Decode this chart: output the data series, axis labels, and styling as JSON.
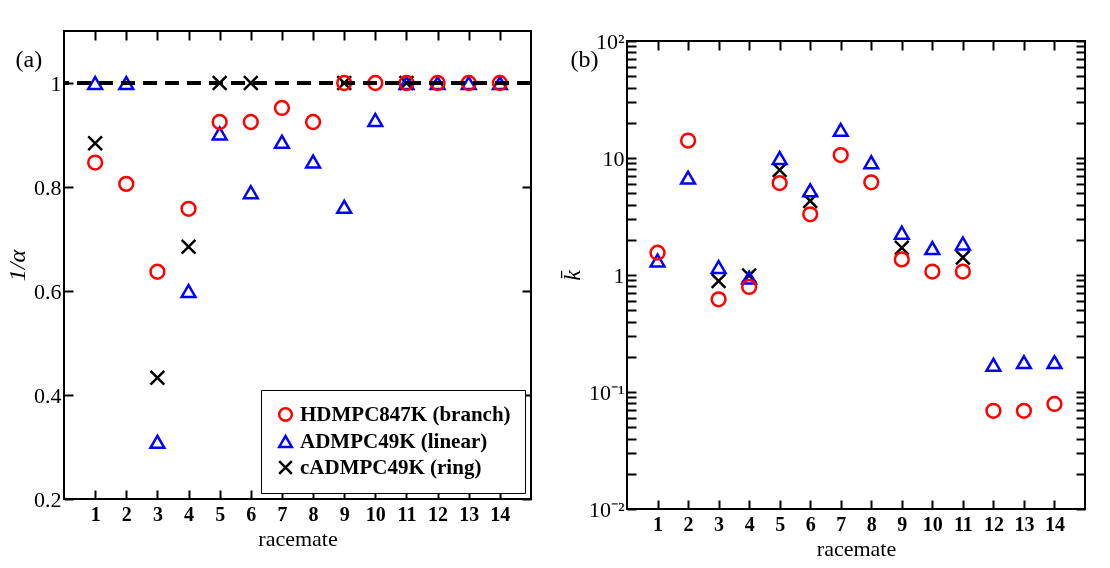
{
  "chart_data": [
    {
      "type": "scatter",
      "title": "(a)",
      "xlabel": "racemate",
      "ylabel": "1/α",
      "x": [
        1,
        2,
        3,
        4,
        5,
        6,
        7,
        8,
        9,
        10,
        11,
        12,
        13,
        14
      ],
      "xlim": [
        0,
        15
      ],
      "xticks": [
        1,
        2,
        3,
        4,
        5,
        6,
        7,
        8,
        9,
        10,
        11,
        12,
        13,
        14
      ],
      "ylim": [
        0.2,
        1.1
      ],
      "yticks": [
        0.2,
        0.4,
        0.6,
        0.8,
        1
      ],
      "grid": false,
      "legend": "bottom right",
      "ref_lines": [
        {
          "axis": "y",
          "value": 1,
          "color": "#000000",
          "line_style": "dashed"
        }
      ],
      "series": [
        {
          "name": "HDMPC847K (branch)",
          "color": "#ff0000",
          "marker": "circle",
          "values": [
            0.847,
            0.806,
            0.637,
            0.758,
            0.925,
            0.925,
            0.952,
            0.925,
            1,
            1,
            1,
            1,
            1,
            1
          ]
        },
        {
          "name": "ADMPC49K (linear)",
          "color": "#0000ff",
          "marker": "triangle",
          "values": [
            1,
            1,
            0.31,
            0.6,
            0.903,
            0.79,
            0.887,
            0.849,
            0.762,
            0.929,
            1,
            1,
            1,
            1
          ]
        },
        {
          "name": "cADMPC49K (ring)",
          "color": "#000000",
          "marker": "cross",
          "values": [
            0.884,
            null,
            0.433,
            0.685,
            1,
            1,
            null,
            null,
            1,
            null,
            1,
            null,
            null,
            null
          ]
        }
      ]
    },
    {
      "type": "scatter",
      "title": "(b)",
      "xlabel": "racemate",
      "ylabel": "k̄",
      "x": [
        1,
        2,
        3,
        4,
        5,
        6,
        7,
        8,
        9,
        10,
        11,
        12,
        13,
        14
      ],
      "xlim": [
        0,
        15
      ],
      "xticks": [
        1,
        2,
        3,
        4,
        5,
        6,
        7,
        8,
        9,
        10,
        11,
        12,
        13,
        14
      ],
      "ylim": [
        0.01,
        100
      ],
      "log": true,
      "yticks": [
        {
          "value": 0.01,
          "label": "10⁻²"
        },
        {
          "value": 0.02,
          "label": null
        },
        {
          "value": 0.03,
          "label": null
        },
        {
          "value": 0.04,
          "label": null
        },
        {
          "value": 0.05,
          "label": null
        },
        {
          "value": 0.06,
          "label": null
        },
        {
          "value": 0.07,
          "label": null
        },
        {
          "value": 0.08,
          "label": null
        },
        {
          "value": 0.09,
          "label": null
        },
        {
          "value": 0.1,
          "label": "10⁻¹"
        },
        {
          "value": 0.2,
          "label": null
        },
        {
          "value": 0.3,
          "label": null
        },
        {
          "value": 0.4,
          "label": null
        },
        {
          "value": 0.5,
          "label": null
        },
        {
          "value": 0.6,
          "label": null
        },
        {
          "value": 0.7,
          "label": null
        },
        {
          "value": 0.8,
          "label": null
        },
        {
          "value": 0.9,
          "label": null
        },
        {
          "value": 1,
          "label": "1"
        },
        {
          "value": 2,
          "label": null
        },
        {
          "value": 3,
          "label": null
        },
        {
          "value": 4,
          "label": null
        },
        {
          "value": 5,
          "label": null
        },
        {
          "value": 6,
          "label": null
        },
        {
          "value": 7,
          "label": null
        },
        {
          "value": 8,
          "label": null
        },
        {
          "value": 9,
          "label": null
        },
        {
          "value": 10,
          "label": "10"
        },
        {
          "value": 20,
          "label": null
        },
        {
          "value": 30,
          "label": null
        },
        {
          "value": 40,
          "label": null
        },
        {
          "value": 50,
          "label": null
        },
        {
          "value": 60,
          "label": null
        },
        {
          "value": 70,
          "label": null
        },
        {
          "value": 80,
          "label": null
        },
        {
          "value": 90,
          "label": null
        },
        {
          "value": 100,
          "label": "10²"
        }
      ],
      "grid": false,
      "series": [
        {
          "color": "#ff0000",
          "marker": "circle",
          "values": [
            1.55,
            14.1,
            0.62,
            0.79,
            6.1,
            3.3,
            10.6,
            6.2,
            1.36,
            1.07,
            1.07,
            0.069,
            0.069,
            0.079
          ]
        },
        {
          "color": "#0000ff",
          "marker": "triangle",
          "values": [
            1.33,
            6.8,
            1.17,
            0.95,
            10,
            5.3,
            17.4,
            9.2,
            2.3,
            1.7,
            1.86,
            0.171,
            0.18,
            0.18
          ]
        },
        {
          "color": "#000000",
          "marker": "cross",
          "values": [
            null,
            null,
            0.89,
            0.99,
            7.9,
            4.3,
            null,
            null,
            1.71,
            null,
            1.41,
            null,
            null,
            null
          ]
        }
      ]
    }
  ]
}
